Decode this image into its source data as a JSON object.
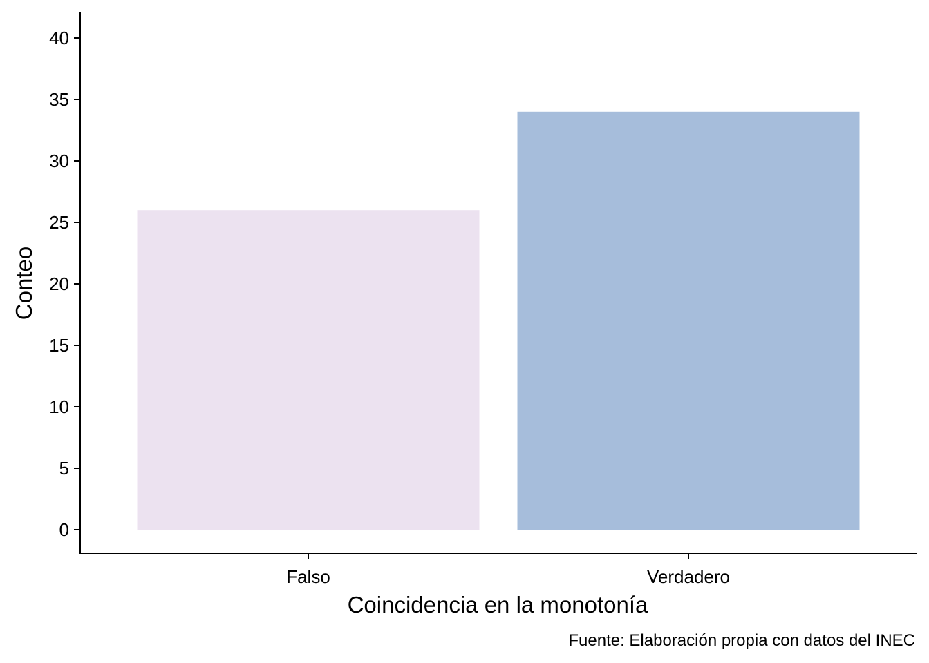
{
  "chart_data": {
    "type": "bar",
    "categories": [
      "Falso",
      "Verdadero"
    ],
    "values": [
      26,
      34
    ],
    "colors": [
      "#ECE2F0",
      "#A6BDDB"
    ],
    "xlabel": "Coincidencia en la monotonía",
    "ylabel": "Conteo",
    "caption": "Fuente: Elaboración propia con datos del INEC",
    "ylim": [
      0,
      40
    ],
    "yticks": [
      0,
      5,
      10,
      15,
      20,
      25,
      30,
      35,
      40
    ],
    "ytick_labels": [
      "0",
      "5",
      "10",
      "15",
      "20",
      "25",
      "30",
      "35",
      "40"
    ],
    "grid": false,
    "legend": "none"
  }
}
